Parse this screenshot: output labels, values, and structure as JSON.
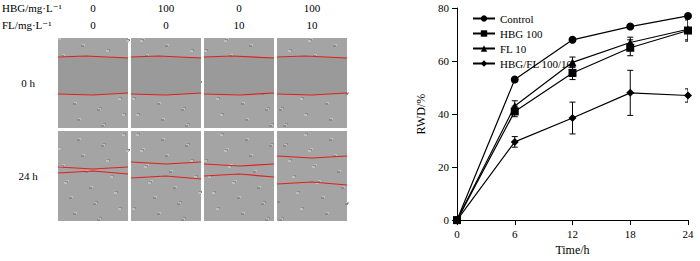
{
  "panel": {
    "conditions": [
      {
        "label": "HBG/mg·L⁻¹",
        "values": [
          0,
          100,
          0,
          100
        ]
      },
      {
        "label": "FL/mg·L⁻¹",
        "values": [
          0,
          0,
          10,
          10
        ]
      }
    ],
    "rows": [
      "0 h",
      "24 h"
    ]
  },
  "chart_data": {
    "type": "line",
    "x_label": "Time/h",
    "y_label": "RWD/%",
    "x": [
      0,
      6,
      12,
      18,
      24
    ],
    "xlim": [
      0,
      24
    ],
    "xticks": [
      0,
      6,
      12,
      18,
      24
    ],
    "ylim": [
      0,
      80
    ],
    "yticks": [
      0,
      20,
      40,
      60,
      80
    ],
    "grid": false,
    "legend": "upper left",
    "series": [
      {
        "name": "Control",
        "color": "#000000",
        "marker": "circle",
        "values": [
          0,
          53,
          68,
          73,
          77
        ],
        "error": [
          0,
          0.5,
          0.5,
          0.5,
          0.5
        ]
      },
      {
        "name": "HBG 100",
        "color": "#000000",
        "marker": "square",
        "values": [
          0,
          41,
          55.5,
          65,
          71.5
        ],
        "error": [
          0,
          2,
          2.5,
          3,
          4
        ]
      },
      {
        "name": "FL 10",
        "color": "#000000",
        "marker": "triangle",
        "values": [
          0,
          43,
          59.5,
          67,
          72
        ],
        "error": [
          0,
          2,
          2,
          2,
          4
        ]
      },
      {
        "name": "HBG/FL 100/10",
        "color": "#000000",
        "marker": "diamond",
        "values": [
          0,
          29.5,
          38.5,
          48,
          47
        ],
        "error": [
          0,
          2,
          6,
          8.5,
          2.5
        ]
      }
    ]
  }
}
